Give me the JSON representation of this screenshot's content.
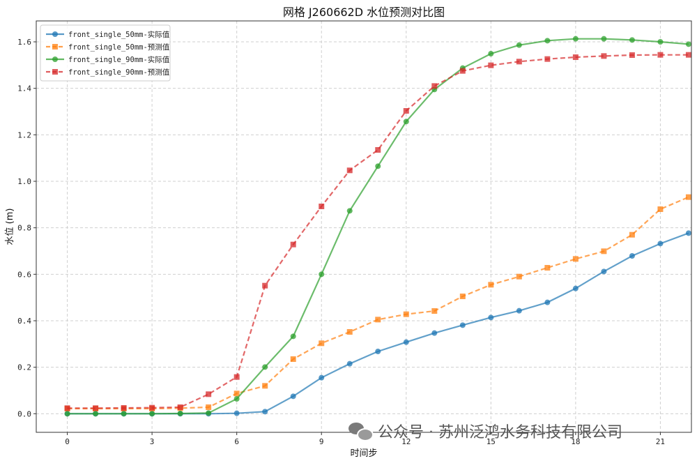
{
  "chart_data": {
    "type": "line",
    "title": "网格 J260662D 水位预测对比图",
    "xlabel": "时间步",
    "ylabel": "水位 (m)",
    "xlim": [
      -1.1,
      22.1
    ],
    "ylim": [
      -0.08,
      1.69
    ],
    "xticks": [
      0,
      3,
      6,
      9,
      12,
      15,
      18,
      21
    ],
    "yticks": [
      0.0,
      0.2,
      0.4,
      0.6,
      0.8,
      1.0,
      1.2,
      1.4,
      1.6
    ],
    "grid": true,
    "legend_position": "upper-left",
    "x": [
      0,
      1,
      2,
      3,
      4,
      5,
      6,
      7,
      8,
      9,
      10,
      11,
      12,
      13,
      14,
      15,
      16,
      17,
      18,
      19,
      20,
      21,
      22
    ],
    "series": [
      {
        "name": "front_single_50mm-实际值",
        "color": "#1f77b4",
        "dash": false,
        "marker": "circle",
        "values": [
          0.0,
          0.0,
          0.0,
          0.0,
          0.0,
          0.0,
          0.002,
          0.009,
          0.075,
          0.155,
          0.215,
          0.268,
          0.308,
          0.347,
          0.381,
          0.414,
          0.443,
          0.479,
          0.539,
          0.612,
          0.679,
          0.732,
          0.777
        ]
      },
      {
        "name": "front_single_50mm-预测值",
        "color": "#ff7f0e",
        "dash": true,
        "marker": "square",
        "values": [
          0.022,
          0.022,
          0.022,
          0.022,
          0.024,
          0.028,
          0.087,
          0.12,
          0.235,
          0.303,
          0.352,
          0.405,
          0.428,
          0.442,
          0.505,
          0.555,
          0.59,
          0.628,
          0.666,
          0.699,
          0.77,
          0.88,
          0.932
        ]
      },
      {
        "name": "front_single_90mm-实际值",
        "color": "#2ca02c",
        "dash": false,
        "marker": "circle",
        "values": [
          0.0,
          0.0,
          0.0,
          0.0,
          0.001,
          0.003,
          0.064,
          0.201,
          0.333,
          0.6,
          0.873,
          1.065,
          1.257,
          1.395,
          1.487,
          1.549,
          1.586,
          1.605,
          1.613,
          1.613,
          1.608,
          1.6,
          1.59
        ]
      },
      {
        "name": "front_single_90mm-预测值",
        "color": "#d62728",
        "dash": true,
        "marker": "square",
        "values": [
          0.024,
          0.024,
          0.025,
          0.026,
          0.028,
          0.084,
          0.158,
          0.551,
          0.728,
          0.892,
          1.047,
          1.135,
          1.303,
          1.41,
          1.475,
          1.499,
          1.515,
          1.526,
          1.534,
          1.539,
          1.543,
          1.544,
          1.544
        ]
      }
    ]
  },
  "watermark": {
    "icon": "wechat-icon",
    "text": "公众号 · 苏州泛鸿水务科技有限公司"
  }
}
